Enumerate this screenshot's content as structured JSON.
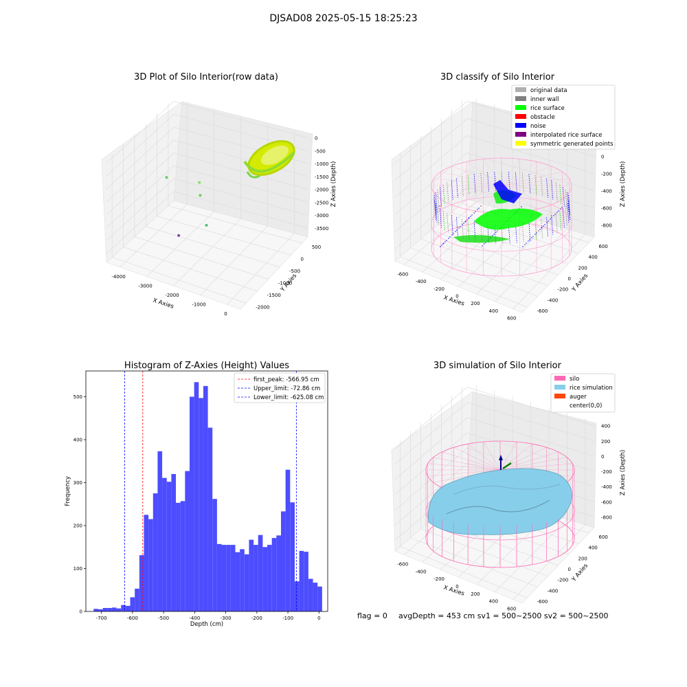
{
  "figure": {
    "suptitle": "DJSAD08 2025-05-15 18:25:23",
    "footer": {
      "flag": "flag = 0",
      "stats": "avgDepth = 453 cm  sv1 = 500~2500  sv2 = 500~2500"
    }
  },
  "colors": {
    "hist_bar": "#4d4dff",
    "first_peak_line": "#ff0000",
    "limit_line": "#0000ff",
    "original_data": "#b0b0b0",
    "inner_wall": "#808080",
    "rice_surface": "#00ff00",
    "obstacle": "#ff0000",
    "noise": "#0000ff",
    "interpolated_rice_surface": "#800080",
    "symmetric_generated_points": "#ffff00",
    "silo": "#ff69b4",
    "rice_simulation": "#87ceeb",
    "auger": "#ff4500"
  },
  "chart_data": [
    {
      "type": "scatter3d",
      "title": "3D Plot of Silo Interior(row data)",
      "xlabel": "X Axies",
      "ylabel": "Y Axies",
      "zlabel": "Z Axies (Depth)",
      "x_ticks": [
        "-4000",
        "-3000",
        "-2000",
        "-1000",
        "0"
      ],
      "y_ticks": [
        "500",
        "0",
        "-500",
        "-1000",
        "-1500",
        "-2000"
      ],
      "z_ticks": [
        "0",
        "-500",
        "-1000",
        "-1500",
        "-2000",
        "-2500",
        "-3000",
        "-3500"
      ],
      "xlim": [
        -4300,
        700
      ],
      "ylim": [
        -2100,
        600
      ],
      "zlim": [
        -3700,
        200
      ],
      "outlier_points": [
        {
          "x": -4200,
          "y": 200,
          "z": -2300
        },
        {
          "x": -2600,
          "y": -200,
          "z": -1500
        },
        {
          "x": -2200,
          "y": -600,
          "z": -1500
        },
        {
          "x": -1500,
          "y": -1100,
          "z": -2000
        },
        {
          "x": -3000,
          "y": -600,
          "z": -3500
        }
      ],
      "grid": true
    },
    {
      "type": "scatter3d",
      "title": "3D classify of Silo Interior",
      "xlabel": "X Axies",
      "ylabel": "Y Axies",
      "zlabel": "Z Axies (Depth)",
      "x_ticks": [
        "-600",
        "-400",
        "-200",
        "0",
        "200",
        "400",
        "600"
      ],
      "y_ticks": [
        "600",
        "400",
        "200",
        "0",
        "-200",
        "-400",
        "-600"
      ],
      "z_ticks": [
        "200",
        "0",
        "-200",
        "-400",
        "-600",
        "-800"
      ],
      "legend": [
        "original data",
        "inner wall",
        "rice surface",
        "obstacle",
        "noise",
        "interpolated rice surface",
        "symmetric generated points"
      ],
      "legend_position": "upper right",
      "grid": true
    },
    {
      "type": "bar",
      "title": "Histogram of Z-Axies (Height) Values",
      "xlabel": "Depth (cm)",
      "ylabel": "Frequency",
      "x_ticks": [
        "-700",
        "-600",
        "-500",
        "-400",
        "-300",
        "-200",
        "-100",
        "0"
      ],
      "y_ticks": [
        "0",
        "100",
        "200",
        "300",
        "400",
        "500"
      ],
      "xlim": [
        -750,
        28
      ],
      "ylim": [
        0,
        560
      ],
      "bin_width": 14.7,
      "bin_start": -725,
      "values": [
        6,
        5,
        8,
        8,
        9,
        7,
        15,
        13,
        33,
        53,
        131,
        225,
        215,
        275,
        373,
        311,
        302,
        320,
        253,
        257,
        327,
        500,
        534,
        497,
        525,
        428,
        262,
        157,
        155,
        155,
        155,
        138,
        145,
        133,
        167,
        155,
        178,
        150,
        155,
        171,
        177,
        233,
        330,
        254,
        70,
        141,
        139,
        76,
        67,
        58
      ],
      "vlines": [
        {
          "label": "first_peak: -566.95 cm",
          "x": -566.95,
          "color": "#ff0000"
        },
        {
          "label": "Upper_limit: -72.86 cm",
          "x": -72.86,
          "color": "#0000ff"
        },
        {
          "label": "Lower_limit: -625.08 cm",
          "x": -625.08,
          "color": "#0000ff"
        }
      ],
      "legend_position": "upper right",
      "grid": false
    },
    {
      "type": "surface3d",
      "title": "3D simulation of Silo Interior",
      "xlabel": "X Axies",
      "ylabel": "Y Axies",
      "zlabel": "Z Axies (Depth)",
      "x_ticks": [
        "-600",
        "-400",
        "-200",
        "0",
        "200",
        "400",
        "600"
      ],
      "y_ticks": [
        "600",
        "400",
        "200",
        "0",
        "-200",
        "-400",
        "-600"
      ],
      "z_ticks": [
        "400",
        "200",
        "0",
        "-200",
        "-400",
        "-600",
        "-800"
      ],
      "legend": [
        "silo",
        "rice simulation",
        "auger",
        "center(0,0)"
      ],
      "legend_position": "upper right",
      "grid": true
    }
  ]
}
